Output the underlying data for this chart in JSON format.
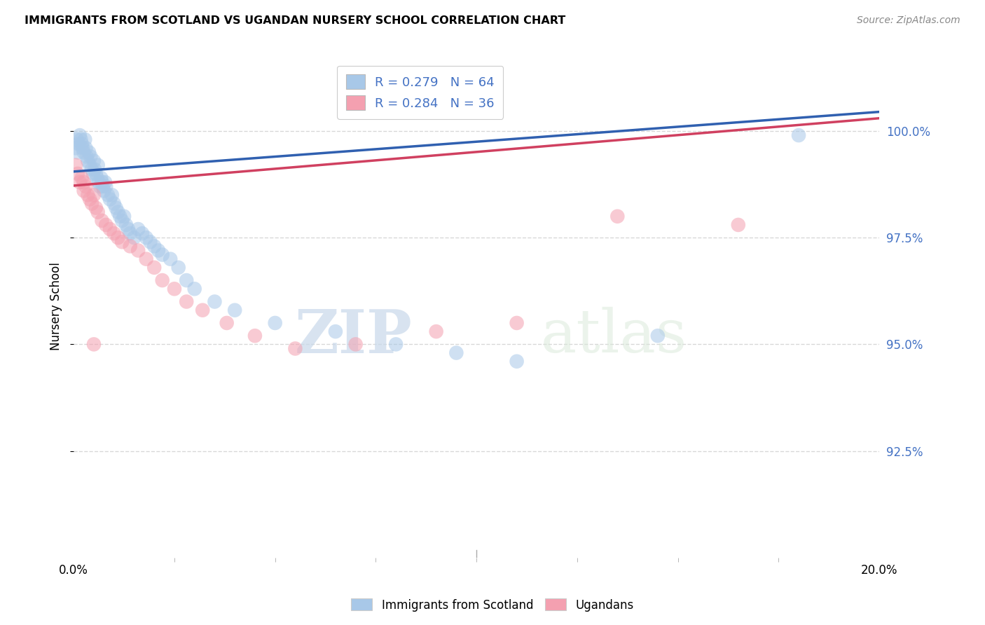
{
  "title": "IMMIGRANTS FROM SCOTLAND VS UGANDAN NURSERY SCHOOL CORRELATION CHART",
  "source": "Source: ZipAtlas.com",
  "ylabel": "Nursery School",
  "xlim": [
    0.0,
    20.0
  ],
  "ylim": [
    90.0,
    101.8
  ],
  "yticks": [
    92.5,
    95.0,
    97.5,
    100.0
  ],
  "legend_blue_label": "Immigrants from Scotland",
  "legend_pink_label": "Ugandans",
  "R_blue": 0.279,
  "N_blue": 64,
  "R_pink": 0.284,
  "N_pink": 36,
  "blue_color": "#a8c8e8",
  "pink_color": "#f4a0b0",
  "blue_line_color": "#3060b0",
  "pink_line_color": "#d04060",
  "blue_scatter_x": [
    0.05,
    0.08,
    0.1,
    0.12,
    0.15,
    0.18,
    0.2,
    0.22,
    0.25,
    0.28,
    0.3,
    0.32,
    0.35,
    0.38,
    0.4,
    0.42,
    0.45,
    0.48,
    0.5,
    0.52,
    0.55,
    0.58,
    0.6,
    0.62,
    0.65,
    0.68,
    0.7,
    0.72,
    0.75,
    0.78,
    0.8,
    0.85,
    0.9,
    0.95,
    1.0,
    1.05,
    1.1,
    1.15,
    1.2,
    1.25,
    1.3,
    1.35,
    1.4,
    1.5,
    1.6,
    1.7,
    1.8,
    1.9,
    2.0,
    2.1,
    2.2,
    2.4,
    2.6,
    2.8,
    3.0,
    3.5,
    4.0,
    5.0,
    6.5,
    8.0,
    9.5,
    11.0,
    14.5,
    18.0
  ],
  "blue_scatter_y": [
    99.6,
    99.8,
    99.5,
    99.7,
    99.9,
    99.8,
    99.7,
    99.6,
    99.5,
    99.8,
    99.6,
    99.4,
    99.3,
    99.5,
    99.2,
    99.4,
    99.1,
    99.0,
    99.3,
    99.1,
    99.0,
    98.9,
    99.2,
    98.8,
    98.7,
    98.9,
    98.8,
    98.7,
    98.6,
    98.8,
    98.7,
    98.5,
    98.4,
    98.5,
    98.3,
    98.2,
    98.1,
    98.0,
    97.9,
    98.0,
    97.8,
    97.7,
    97.6,
    97.5,
    97.7,
    97.6,
    97.5,
    97.4,
    97.3,
    97.2,
    97.1,
    97.0,
    96.8,
    96.5,
    96.3,
    96.0,
    95.8,
    95.5,
    95.3,
    95.0,
    94.8,
    94.6,
    95.2,
    99.9
  ],
  "pink_scatter_x": [
    0.05,
    0.1,
    0.15,
    0.2,
    0.25,
    0.3,
    0.35,
    0.4,
    0.45,
    0.5,
    0.55,
    0.6,
    0.7,
    0.8,
    0.9,
    1.0,
    1.1,
    1.2,
    1.4,
    1.6,
    1.8,
    2.0,
    2.2,
    2.5,
    2.8,
    3.2,
    3.8,
    4.5,
    5.5,
    7.0,
    9.0,
    11.0,
    13.5,
    16.5,
    0.25,
    0.5
  ],
  "pink_scatter_y": [
    99.2,
    99.0,
    98.8,
    98.9,
    98.6,
    98.7,
    98.5,
    98.4,
    98.3,
    98.5,
    98.2,
    98.1,
    97.9,
    97.8,
    97.7,
    97.6,
    97.5,
    97.4,
    97.3,
    97.2,
    97.0,
    96.8,
    96.5,
    96.3,
    96.0,
    95.8,
    95.5,
    95.2,
    94.9,
    95.0,
    95.3,
    95.5,
    98.0,
    97.8,
    98.8,
    95.0
  ],
  "watermark_zip": "ZIP",
  "watermark_atlas": "atlas",
  "background_color": "#ffffff",
  "grid_color": "#d8d8d8",
  "ytick_color": "#4472c4",
  "title_fontsize": 11.5,
  "source_fontsize": 10,
  "axis_fontsize": 12,
  "legend_fontsize": 13
}
